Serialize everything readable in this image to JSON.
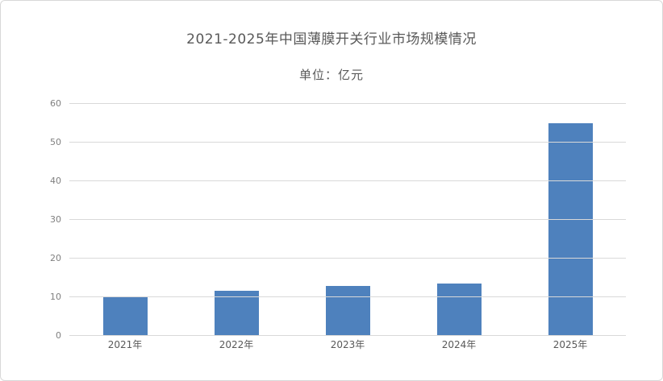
{
  "chart_data": {
    "type": "bar",
    "title": "2021-2025年中国薄膜开关行业市场规模情况",
    "subtitle": "单位：亿元",
    "categories": [
      "2021年",
      "2022年",
      "2023年",
      "2024年",
      "2025年"
    ],
    "values": [
      10.3,
      11.6,
      12.9,
      13.6,
      55
    ],
    "xlabel": "",
    "ylabel": "",
    "ylim": [
      0,
      60
    ],
    "y_ticks": [
      0,
      10,
      20,
      30,
      40,
      50,
      60
    ],
    "grid": "horizontal",
    "legend": "none",
    "bar_color": "#4e81bd",
    "gridline_color": "#d9d9d9",
    "title_color": "#595959",
    "tick_label_color": "#808080",
    "category_label_color": "#595959"
  }
}
